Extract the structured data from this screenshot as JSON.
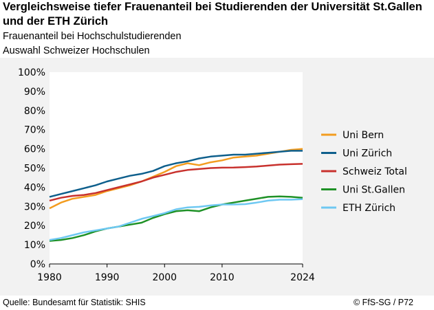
{
  "header": {
    "title": "Vergleichsweise tiefer Frauenanteil bei Studierenden der Universität St.Gallen und der ETH Zürich",
    "subtitle1": "Frauenanteil bei Hochschulstudierenden",
    "subtitle2": "Auswahl Schweizer Hochschulen"
  },
  "footer": {
    "source": "Quelle: Bundesamt für Statistik: SHIS",
    "copyright": "© FfS-SG / P72"
  },
  "chart_data": {
    "type": "line",
    "title": "Frauenanteil bei Hochschulstudierenden",
    "xlabel": "",
    "ylabel": "",
    "xlim": [
      1980,
      2024
    ],
    "ylim": [
      0,
      100
    ],
    "x_ticks": [
      1980,
      1990,
      2000,
      2010,
      2024
    ],
    "x_tick_labels": [
      "1980",
      "1990",
      "2000",
      "2010",
      "2024"
    ],
    "y_ticks": [
      0,
      10,
      20,
      30,
      40,
      50,
      60,
      70,
      80,
      90,
      100
    ],
    "y_tick_labels": [
      "0%",
      "10%",
      "20%",
      "30%",
      "40%",
      "50%",
      "60%",
      "70%",
      "80%",
      "90%",
      "100%"
    ],
    "grid": false,
    "legend_position": "right",
    "x": [
      1980,
      1982,
      1984,
      1986,
      1988,
      1990,
      1992,
      1994,
      1996,
      1998,
      2000,
      2002,
      2004,
      2006,
      2008,
      2010,
      2012,
      2014,
      2016,
      2018,
      2020,
      2022,
      2024
    ],
    "series": [
      {
        "name": "Uni Bern",
        "color": "#f39c1f",
        "values": [
          29,
          32,
          34,
          35,
          36,
          38,
          39.5,
          41,
          43,
          45.5,
          48,
          51,
          52.5,
          51.5,
          53,
          54,
          55.5,
          56,
          56.5,
          57.5,
          58.5,
          59.5,
          60
        ]
      },
      {
        "name": "Uni Zürich",
        "color": "#0e5f8c",
        "values": [
          35,
          36.5,
          38,
          39.5,
          41,
          43,
          44.5,
          46,
          47,
          48.5,
          51,
          52.5,
          53.5,
          55,
          56,
          56.5,
          57,
          57,
          57.5,
          58,
          58.5,
          59,
          59
        ]
      },
      {
        "name": "Schweiz Total",
        "color": "#c8312d",
        "values": [
          33,
          34.5,
          35.5,
          36,
          37,
          38.5,
          40,
          41.5,
          43,
          45,
          46.5,
          48,
          49,
          49.5,
          50,
          50.2,
          50.3,
          50.5,
          50.8,
          51.3,
          51.8,
          52,
          52.2
        ]
      },
      {
        "name": "Uni St.Gallen",
        "color": "#1e9126",
        "values": [
          12,
          12.5,
          13.5,
          15,
          17,
          18.5,
          19.5,
          20.5,
          21.5,
          24,
          26,
          27.5,
          28,
          27.5,
          29.5,
          31,
          32,
          33,
          34,
          35,
          35.2,
          35,
          34.5
        ]
      },
      {
        "name": "ETH Zürich",
        "color": "#6ec8f2",
        "values": [
          12.5,
          13.5,
          15,
          16.5,
          17.5,
          18.5,
          19.5,
          21.5,
          23.5,
          25,
          26.5,
          28.5,
          29.5,
          29.8,
          30.5,
          31,
          31,
          31.2,
          32,
          33,
          33.5,
          33.5,
          33.8
        ]
      }
    ]
  }
}
